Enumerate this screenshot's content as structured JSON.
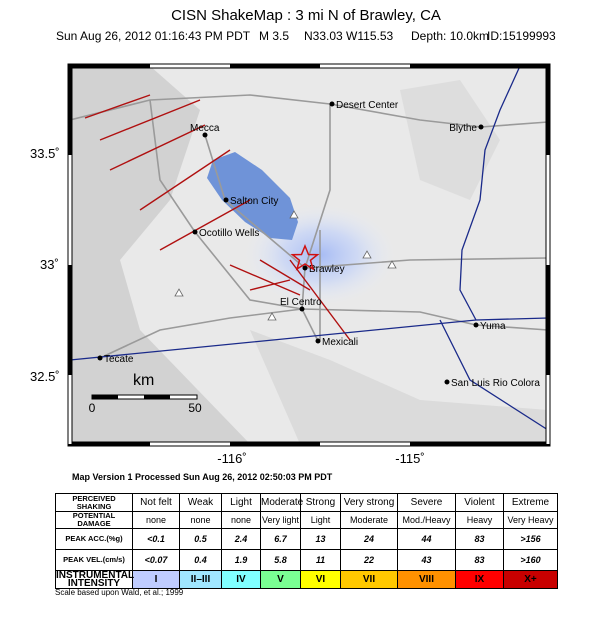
{
  "header": {
    "title": "CISN ShakeMap : 3 mi N of Brawley, CA",
    "subtitle": [
      "Sun Aug 26, 2012 01:16:43 PM PDT",
      "M 3.5",
      "N33.03 W115.53",
      "Depth: 10.0km",
      "ID:15199993"
    ]
  },
  "map": {
    "lat_labels": [
      "33.5˚",
      "33˚",
      "32.5˚"
    ],
    "lon_labels": [
      "-116˚",
      "-115˚"
    ],
    "cities": [
      "Desert Center",
      "Blythe",
      "Mecca",
      "Salton City",
      "Ocotillo Wells",
      "Brawley",
      "El Centro",
      "Mexicali",
      "Yuma",
      "Tecate",
      "San Luis Rio Colora"
    ],
    "scale": {
      "unit": "km",
      "ticks": [
        "0",
        "50"
      ]
    }
  },
  "version": "Map Version 1 Processed Sun Aug 26, 2012 02:50:03 PM PDT",
  "legend": {
    "rows": [
      {
        "label": "PERCEIVED SHAKING",
        "cells": [
          "Not felt",
          "Weak",
          "Light",
          "Moderate",
          "Strong",
          "Very strong",
          "Severe",
          "Violent",
          "Extreme"
        ]
      },
      {
        "label": "POTENTIAL DAMAGE",
        "cells": [
          "none",
          "none",
          "none",
          "Very light",
          "Light",
          "Moderate",
          "Mod./Heavy",
          "Heavy",
          "Very Heavy"
        ]
      },
      {
        "label": "PEAK ACC.(%g)",
        "cells": [
          "<0.1",
          "0.5",
          "2.4",
          "6.7",
          "13",
          "24",
          "44",
          "83",
          ">156"
        ]
      },
      {
        "label": "PEAK VEL.(cm/s)",
        "cells": [
          "<0.07",
          "0.4",
          "1.9",
          "5.8",
          "11",
          "22",
          "43",
          "83",
          ">160"
        ]
      },
      {
        "label": "INSTRUMENTAL INTENSITY",
        "cells": [
          "I",
          "II–III",
          "IV",
          "V",
          "VI",
          "VII",
          "VIII",
          "IX",
          "X+"
        ]
      }
    ]
  },
  "footer": "Scale based upon Wald, et al.; 1999"
}
